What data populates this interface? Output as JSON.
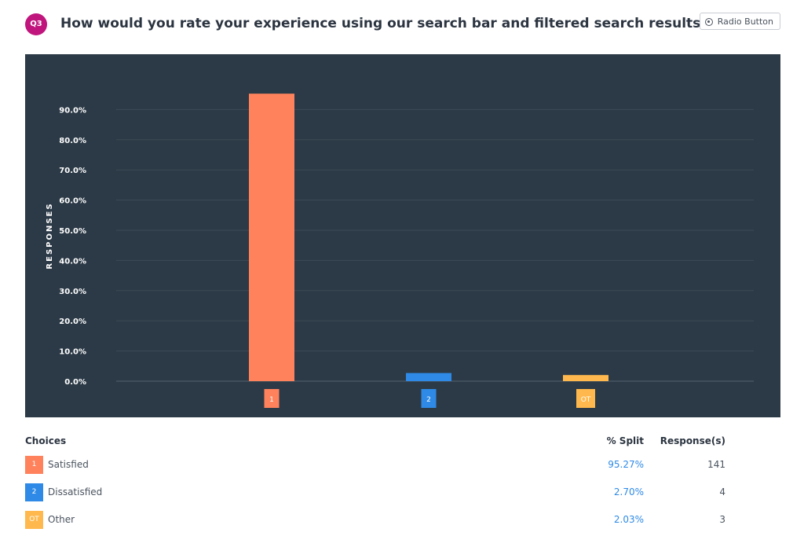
{
  "question": {
    "badge": "Q3",
    "title": "How would you rate your experience using our search bar and filtered search results?",
    "type_label": "Radio Button",
    "type_icon": "radio-button-icon"
  },
  "chart_data": {
    "type": "bar",
    "ylabel": "RESPONSES",
    "xlabel": "",
    "ylim": [
      0,
      100
    ],
    "yticks": [
      "0.0%",
      "10.0%",
      "20.0%",
      "30.0%",
      "40.0%",
      "50.0%",
      "60.0%",
      "70.0%",
      "80.0%",
      "90.0%"
    ],
    "ytick_values": [
      0,
      10,
      20,
      30,
      40,
      50,
      60,
      70,
      80,
      90
    ],
    "categories": [
      "1",
      "2",
      "OT"
    ],
    "values": [
      95.27,
      2.7,
      2.03
    ],
    "colors": [
      "#ff825c",
      "#2e8ae6",
      "#ffb84d"
    ],
    "grid": true,
    "background": "#2c3a47"
  },
  "table": {
    "headers": {
      "choices": "Choices",
      "split": "% Split",
      "responses": "Response(s)"
    },
    "rows": [
      {
        "code": "1",
        "label": "Satisfied",
        "split": "95.27%",
        "responses": "141",
        "color": "#ff825c"
      },
      {
        "code": "2",
        "label": "Dissatisfied",
        "split": "2.70%",
        "responses": "4",
        "color": "#2e8ae6"
      },
      {
        "code": "OT",
        "label": "Other",
        "split": "2.03%",
        "responses": "3",
        "color": "#ffb84d"
      }
    ]
  }
}
